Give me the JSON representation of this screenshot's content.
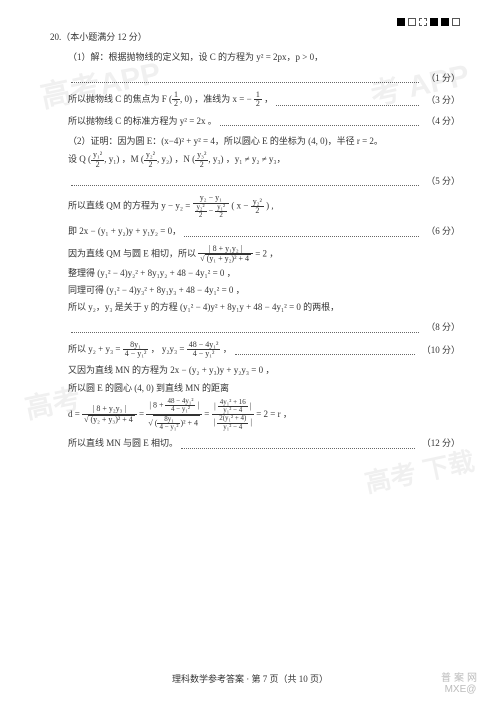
{
  "page": {
    "top_marks": [
      "fill",
      "open",
      "dash",
      "fill",
      "fill",
      "open"
    ],
    "footer": "理科数学参考答案 · 第 7 页（共 10 页）",
    "brand_ch": "普案网",
    "brand_en": "MXE@"
  },
  "watermarks": {
    "w1": "高考APP",
    "w2": "考 APP",
    "w3": "高考",
    "w4": "高考 下载"
  },
  "q": {
    "head": "20.（本小题满分 12 分）",
    "l1": "（1）解：根据抛物线的定义知，设 C 的方程为 y² = 2px，p > 0，",
    "s1": "（1 分）",
    "l2a": "所以抛物线 C 的焦点为 F",
    "l2b": "，准线为 x = −",
    "l2c": "，",
    "s2": "（3 分）",
    "l3": "所以抛物线 C 的标准方程为 y² = 2x 。",
    "s3": "（4 分）",
    "l4": "（2）证明：因为圆 E：(x−4)² + y² = 4，所以圆心 E 的坐标为 (4, 0)，半径 r = 2。",
    "l5a": "设 Q",
    "l5b": "，M",
    "l5c": "，N",
    "l5d": "，y₁ ≠ y₂ ≠ y₃，",
    "s5": "（5 分）",
    "l6": "所以直线 QM 的方程为 y − y₂ =",
    "l7": "即 2x − (y₁ + y₂)y + y₁y₂ = 0，",
    "s7": "（6 分）",
    "l8": "因为直线 QM 与圆 E 相切，所以",
    "l8b": "= 2 ，",
    "l9": "整理得 (y₁² − 4)y₂² + 8y₁y₂ + 48 − 4y₁² = 0 ，",
    "l10": "同理可得 (y₁² − 4)y₃² + 8y₁y₃ + 48 − 4y₁² = 0 ，",
    "l11": "所以 y₂，y₃ 是关于 y 的方程 (y₁² − 4)y² + 8y₁y + 48 − 4y₁² = 0 的两根，",
    "s11": "（8 分）",
    "l12a": "所以 y₂ + y₃ =",
    "l12b": "，  y₂y₃ =",
    "l12c": "，",
    "s12": "（10 分）",
    "l13": "又因为直线 MN 的方程为 2x − (y₂ + y₃)y + y₂y₃ = 0 ，",
    "l14": "所以圆 E 的圆心 (4, 0) 到直线 MN 的距离",
    "l15": "d =",
    "l15end": "= 2 = r ，",
    "l16": "所以直线 MN 与圆 E 相切。",
    "s16": "（12 分）"
  },
  "frac": {
    "half_n": "1",
    "half_d": "2",
    "y1sq_n": "y₁²",
    "y2sq_n": "y₂²",
    "y3sq_n": "y₃²",
    "two": "2",
    "qm_num": "y₂ − y₁",
    "qm_den_l": "y₂²",
    "qm_den_r": "y₁²",
    "abs8": "| 8 + y₁y₂ |",
    "rootA": "(y₁ + y₂)² + 4",
    "sumN": "8y₁",
    "sumD": "4 − y₁²",
    "prodN": "48 − 4y₁²",
    "prodD": "4 − y₁²",
    "dN1": "| 8 + y₂y₃ |",
    "dD1": "(y₂ + y₃)² + 4",
    "dN2a": "8 +",
    "dN2b": "48 − 4y₁²",
    "dN2c": "4 − y₁²",
    "dD2a": "8y₁",
    "dD2b": "4 − y₁²",
    "dD2c": "+ 4",
    "dN3": "4y₁² + 16",
    "dN3d": "y₁² − 4",
    "dD3": "2(y₁² + 4)",
    "dD3d": "y₁² − 4",
    "paren": "( x −",
    "parenEnd": ")"
  }
}
